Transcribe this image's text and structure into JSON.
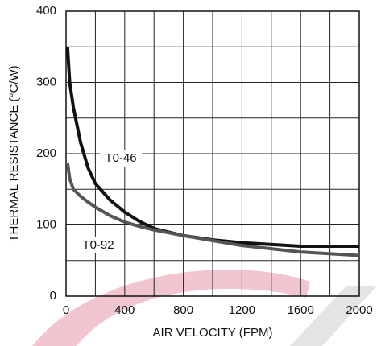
{
  "chart_data": {
    "type": "line",
    "x_label": "AIR VELOCITY (FPM)",
    "y_label": "THERMAL RESISTANCE (°C/W)",
    "xlim": [
      0,
      2000
    ],
    "xticks": [
      0,
      400,
      800,
      1200,
      1600,
      2000
    ],
    "ylim": [
      0,
      400
    ],
    "yticks": [
      0,
      100,
      200,
      300,
      400
    ],
    "xgrid": [
      0,
      200,
      400,
      600,
      800,
      1000,
      1200,
      1400,
      1600,
      1800,
      2000
    ],
    "ygrid": [
      0,
      50,
      100,
      150,
      200,
      250,
      300,
      350,
      400
    ],
    "grid": true,
    "x": [
      10,
      25,
      50,
      100,
      150,
      200,
      300,
      400,
      500,
      600,
      800,
      1000,
      1200,
      1600,
      2000
    ],
    "series": [
      {
        "name": "T0-46",
        "color": "#111111",
        "values": [
          350,
          300,
          265,
          215,
          180,
          158,
          135,
          118,
          105,
          95,
          85,
          79,
          75,
          70,
          70
        ]
      },
      {
        "name": "T0-92",
        "color": "#555555",
        "values": [
          187,
          165,
          150,
          140,
          132,
          125,
          113,
          104,
          98,
          93,
          85,
          78,
          71,
          62,
          57
        ]
      }
    ]
  }
}
